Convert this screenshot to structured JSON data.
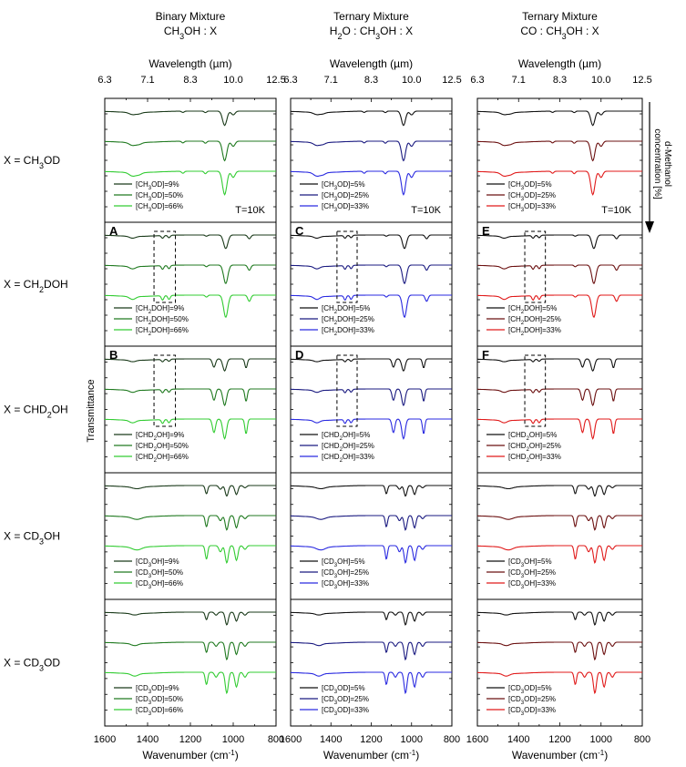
{
  "figure": {
    "ylabel": "Transmittance",
    "arrow_label": [
      "d-Methanol",
      "concentration [%]"
    ],
    "temperature_label": "T=10K"
  },
  "columns": [
    {
      "title_line1": "Binary Mixture",
      "title_line2": "CH3OH : X",
      "palette": [
        "#1a3a1a",
        "#207a20",
        "#33cc33"
      ]
    },
    {
      "title_line1": "Ternary Mixture",
      "title_line2": "H2O : CH3OH : X",
      "palette": [
        "#111111",
        "#1a1a80",
        "#2a2ae0"
      ]
    },
    {
      "title_line1": "Ternary Mixture",
      "title_line2": "CO : CH3OH : X",
      "palette": [
        "#111111",
        "#6b1010",
        "#e01a1a"
      ]
    }
  ],
  "rows": [
    {
      "label": "X = CH3OD",
      "species": "CH3OD"
    },
    {
      "label": "X = CH2DOH",
      "species": "CH2DOH"
    },
    {
      "label": "X = CHD2OH",
      "species": "CHD2OH"
    },
    {
      "label": "X = CD3OH",
      "species": "CD3OH"
    },
    {
      "label": "X = CD3OD",
      "species": "CD3OD"
    }
  ],
  "concentrations": [
    [
      "9%",
      "50%",
      "66%"
    ],
    [
      "5%",
      "25%",
      "33%"
    ],
    [
      "5%",
      "25%",
      "33%"
    ]
  ],
  "panel_letters": {
    "1-0": "A",
    "1-1": "C",
    "1-2": "E",
    "2-0": "B",
    "2-1": "D",
    "2-2": "F"
  },
  "chart_data": {
    "type": "line",
    "title": "",
    "xlabel": "Wavenumber (cm-1)",
    "xlim": [
      1600,
      800
    ],
    "xticks": [
      1600,
      1400,
      1200,
      1000,
      800
    ],
    "top_axis_label": "Wavelength (µm)",
    "top_ticks": [
      "6.3",
      "7.1",
      "8.3",
      "10.0",
      "12.5"
    ],
    "highlight_box_cm1": [
      1370,
      1270
    ],
    "series_note": "each panel: three offset IR spectra, one per concentration",
    "bands": {
      "CH3OD": [
        {
          "center": 1470,
          "depth": 0.14,
          "width": 22
        },
        {
          "center": 1440,
          "depth": 0.08,
          "width": 18
        },
        {
          "center": 1130,
          "depth": 0.1,
          "width": 8
        },
        {
          "center": 1040,
          "depth": 0.95,
          "width": 14
        },
        {
          "center": 1000,
          "depth": 0.25,
          "width": 12
        },
        {
          "center": 1235,
          "depth": 0.08,
          "width": 8
        }
      ],
      "CH2DOH": [
        {
          "center": 1470,
          "depth": 0.12,
          "width": 20
        },
        {
          "center": 1330,
          "depth": 0.18,
          "width": 8
        },
        {
          "center": 1300,
          "depth": 0.16,
          "width": 8
        },
        {
          "center": 1035,
          "depth": 0.9,
          "width": 14
        },
        {
          "center": 925,
          "depth": 0.25,
          "width": 10
        },
        {
          "center": 1125,
          "depth": 0.08,
          "width": 8
        }
      ],
      "CHD2OH": [
        {
          "center": 1470,
          "depth": 0.1,
          "width": 20
        },
        {
          "center": 1330,
          "depth": 0.16,
          "width": 8
        },
        {
          "center": 1300,
          "depth": 0.14,
          "width": 8
        },
        {
          "center": 1090,
          "depth": 0.55,
          "width": 10
        },
        {
          "center": 1040,
          "depth": 0.8,
          "width": 12
        },
        {
          "center": 940,
          "depth": 0.6,
          "width": 8
        }
      ],
      "CD3OH": [
        {
          "center": 1450,
          "depth": 0.12,
          "width": 30
        },
        {
          "center": 1125,
          "depth": 0.55,
          "width": 8
        },
        {
          "center": 1060,
          "depth": 0.25,
          "width": 10
        },
        {
          "center": 1030,
          "depth": 0.7,
          "width": 10
        },
        {
          "center": 985,
          "depth": 0.6,
          "width": 10
        },
        {
          "center": 945,
          "depth": 0.15,
          "width": 10
        }
      ],
      "CD3OD": [
        {
          "center": 1460,
          "depth": 0.1,
          "width": 22
        },
        {
          "center": 1125,
          "depth": 0.5,
          "width": 8
        },
        {
          "center": 1080,
          "depth": 0.2,
          "width": 10
        },
        {
          "center": 1030,
          "depth": 0.85,
          "width": 10
        },
        {
          "center": 985,
          "depth": 0.6,
          "width": 10
        },
        {
          "center": 945,
          "depth": 0.2,
          "width": 10
        }
      ]
    }
  }
}
